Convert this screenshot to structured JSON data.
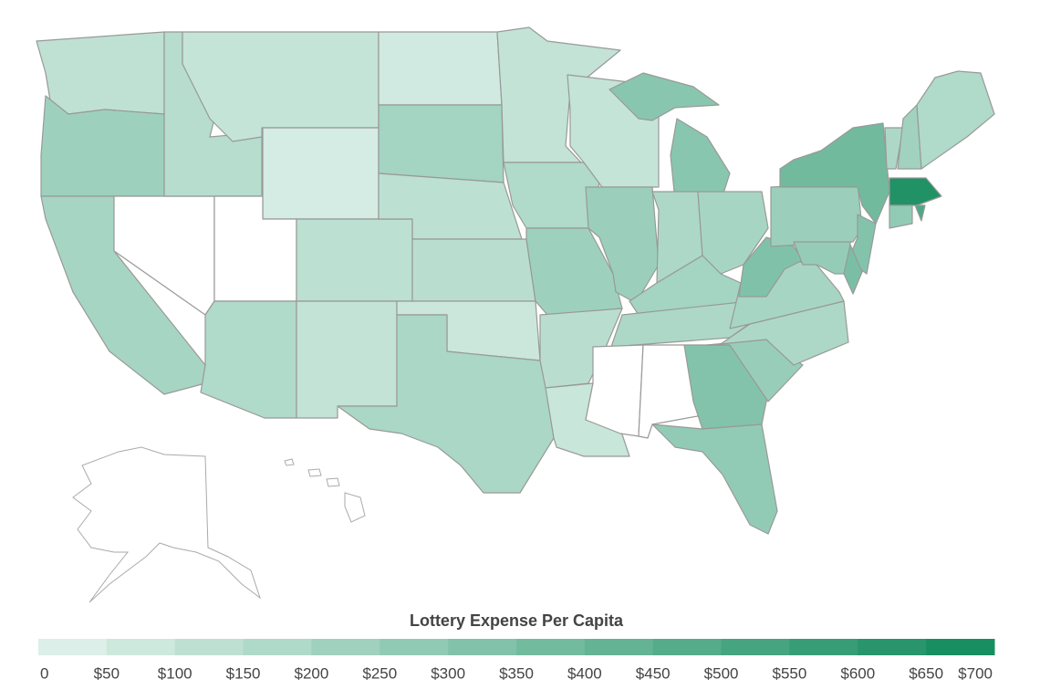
{
  "chart_data": {
    "type": "choropleth",
    "legend_title": "Lottery Expense Per Capita",
    "values": [
      120,
      230,
      200,
      null,
      150,
      100,
      50,
      null,
      130,
      170,
      110,
      60,
      210,
      130,
      140,
      80,
      190,
      110,
      170,
      230,
      140,
      90,
      100,
      240,
      300,
      300,
      180,
      200,
      210,
      180,
      null,
      null,
      320,
      270,
      250,
      180,
      200,
      330,
      240,
      380,
      320,
      260,
      350,
      180,
      220,
      170,
      650,
      270,
      500
    ],
    "clim": [
      0,
      700
    ],
    "colors": [
      "#e3f3ed",
      "#118a5c"
    ],
    "null_color": "#ffffff",
    "ticks": [
      0,
      {
        "value": 50,
        "label": "$50"
      },
      {
        "value": 100,
        "label": "$100"
      },
      {
        "value": 150,
        "label": "$150"
      },
      {
        "value": 200,
        "label": "$200"
      },
      {
        "value": 250,
        "label": "$250"
      },
      {
        "value": 300,
        "label": "$300"
      },
      {
        "value": 350,
        "label": "$350"
      },
      {
        "value": 400,
        "label": "$400"
      },
      {
        "value": 450,
        "label": "$450"
      },
      {
        "value": 500,
        "label": "$500"
      },
      {
        "value": 550,
        "label": "$550"
      },
      {
        "value": 600,
        "label": "$600"
      },
      {
        "value": 650,
        "label": "$650"
      },
      {
        "value": 700,
        "label": "$700"
      }
    ]
  }
}
